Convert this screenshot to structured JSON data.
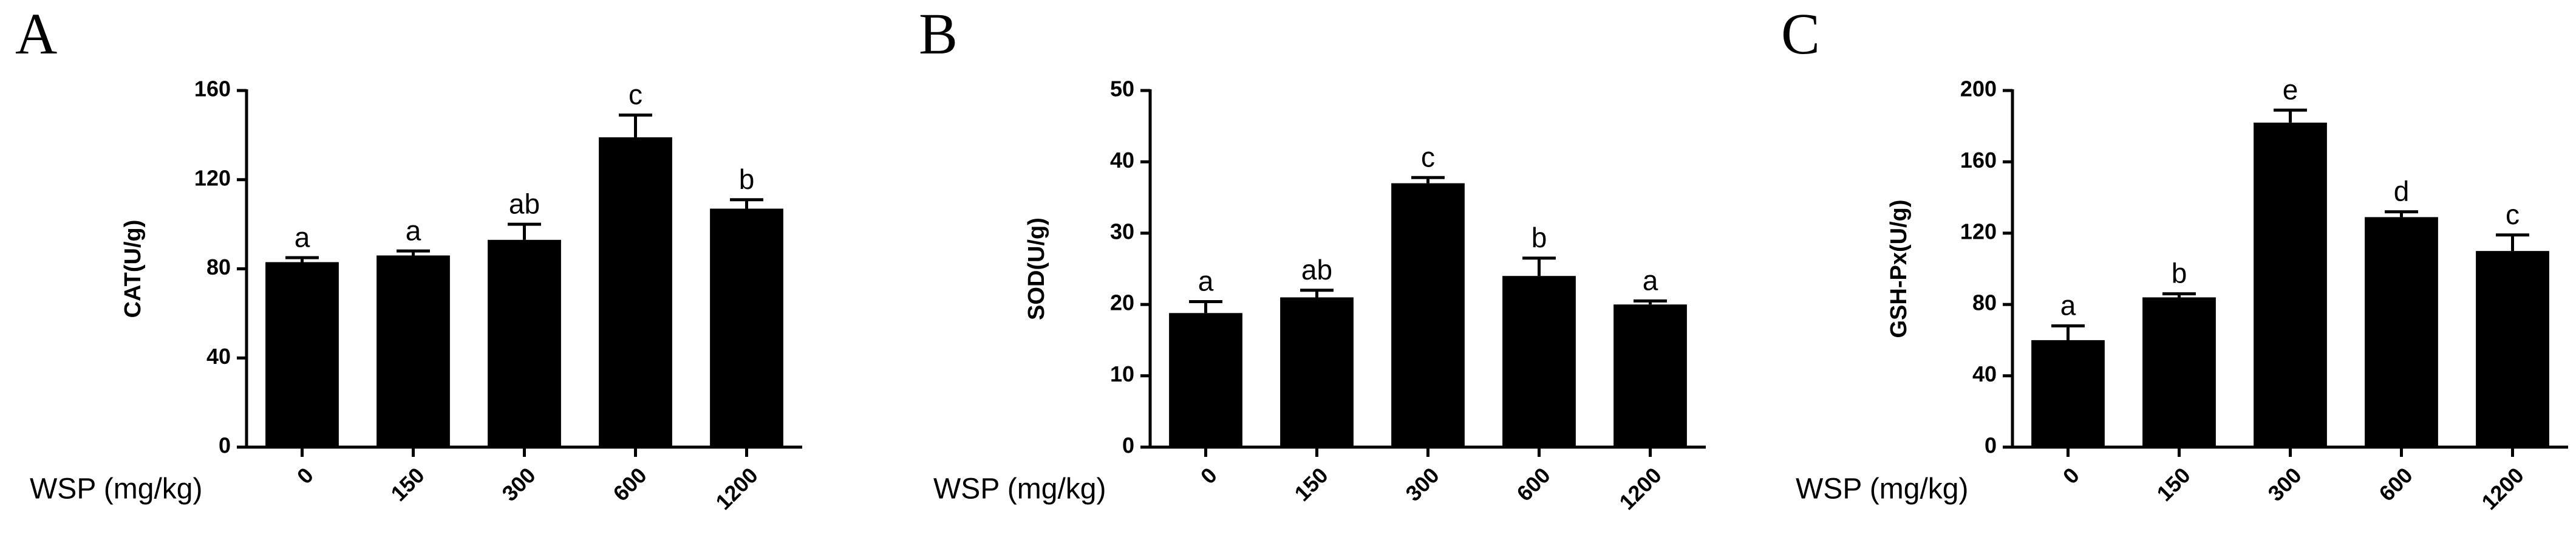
{
  "chart_data": [
    {
      "type": "bar",
      "panel_label": "A",
      "y_label": "CAT(U/g)",
      "x_label": "WSP (mg/kg)",
      "color": "#000000",
      "categories": [
        "0",
        "150",
        "300",
        "600",
        "1200"
      ],
      "values": [
        83,
        86,
        93,
        139,
        107
      ],
      "errors": [
        2,
        2,
        7,
        10,
        4
      ],
      "annotations": [
        "a",
        "a",
        "ab",
        "c",
        "b"
      ],
      "ylim": [
        0,
        160
      ],
      "yticks": [
        0,
        40,
        80,
        120,
        160
      ]
    },
    {
      "type": "bar",
      "panel_label": "B",
      "y_label": "SOD(U/g)",
      "x_label": "WSP (mg/kg)",
      "color": "#000000",
      "categories": [
        "0",
        "150",
        "300",
        "600",
        "1200"
      ],
      "values": [
        18.8,
        21,
        37,
        24,
        20
      ],
      "errors": [
        1.6,
        1,
        0.8,
        2.5,
        0.5
      ],
      "annotations": [
        "a",
        "ab",
        "c",
        "b",
        "a"
      ],
      "ylim": [
        0,
        50
      ],
      "yticks": [
        0,
        10,
        20,
        30,
        40,
        50
      ]
    },
    {
      "type": "bar",
      "panel_label": "C",
      "y_label": "GSH-Px(U/g)",
      "x_label": "WSP (mg/kg)",
      "color": "#000000",
      "categories": [
        "0",
        "150",
        "300",
        "600",
        "1200"
      ],
      "values": [
        60,
        84,
        182,
        129,
        110
      ],
      "errors": [
        8,
        2,
        7,
        3,
        9
      ],
      "annotations": [
        "a",
        "b",
        "e",
        "d",
        "c"
      ],
      "ylim": [
        0,
        200
      ],
      "yticks": [
        0,
        40,
        80,
        120,
        160,
        200
      ]
    }
  ]
}
